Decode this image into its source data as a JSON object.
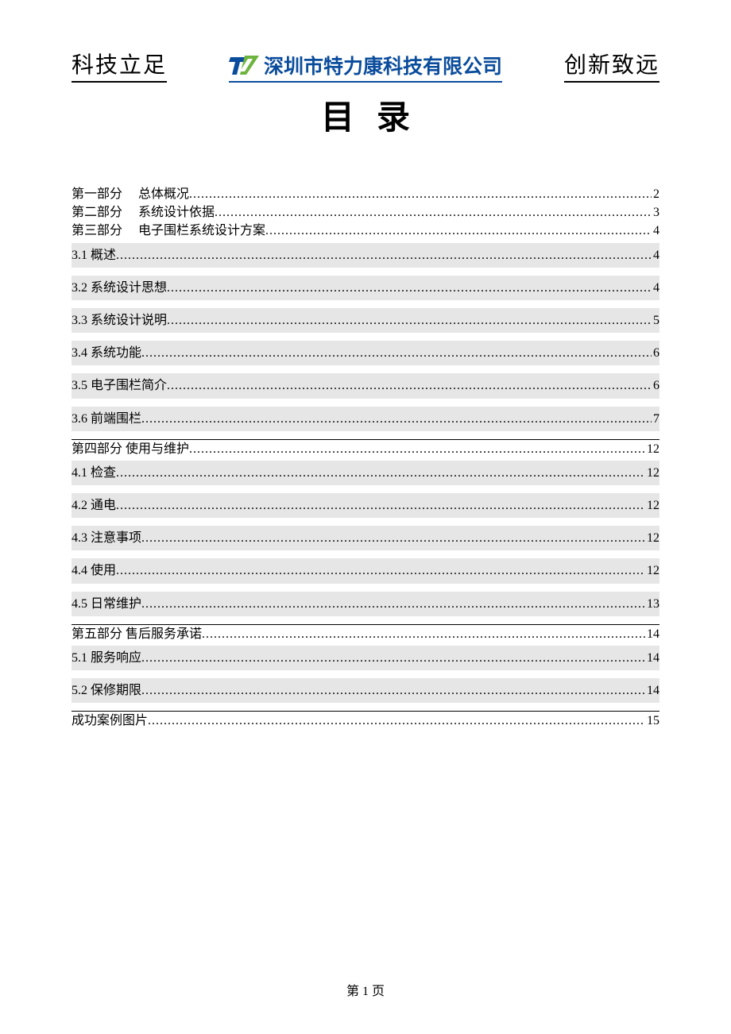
{
  "header": {
    "left": "科技立足",
    "company": "深圳市特力康科技有限公司",
    "right": "创新致远"
  },
  "title": "目录",
  "toc": [
    {
      "label": "第一部分　 总体概况",
      "page": "2",
      "level": 1,
      "shaded": false,
      "sep": false
    },
    {
      "label": "第二部分　 系统设计依据",
      "page": "3",
      "level": 1,
      "shaded": false,
      "sep": false
    },
    {
      "label": "第三部分　 电子围栏系统设计方案",
      "page": "4",
      "level": 1,
      "shaded": false,
      "sep": false
    },
    {
      "label": "3.1  概述",
      "page": "4",
      "level": 2,
      "shaded": true,
      "first": true,
      "sep": false
    },
    {
      "label": "3.2  系统设计思想",
      "page": "4",
      "level": 2,
      "shaded": true,
      "sep": false
    },
    {
      "label": "3.3  系统设计说明",
      "page": "5",
      "level": 2,
      "shaded": true,
      "sep": false
    },
    {
      "label": "3.4  系统功能",
      "page": "6",
      "level": 2,
      "shaded": true,
      "sep": false
    },
    {
      "label": "3.5  电子围栏简介",
      "page": "6",
      "level": 2,
      "shaded": true,
      "sep": false
    },
    {
      "label": "3.6  前端围栏",
      "page": "7",
      "level": 2,
      "shaded": true,
      "sep": true
    },
    {
      "label": "第四部分  使用与维护",
      "page": "12",
      "level": 1,
      "shaded": false,
      "sep": false
    },
    {
      "label": "4.1 检查",
      "page": "12",
      "level": 2,
      "shaded": true,
      "first": true,
      "sep": false
    },
    {
      "label": "4.2  通电",
      "page": "12",
      "level": 2,
      "shaded": true,
      "sep": false
    },
    {
      "label": "4.3 注意事项",
      "page": "12",
      "level": 2,
      "shaded": true,
      "sep": false
    },
    {
      "label": "4.4  使用",
      "page": "12",
      "level": 2,
      "shaded": true,
      "sep": false
    },
    {
      "label": "4.5  日常维护",
      "page": "13",
      "level": 2,
      "shaded": true,
      "sep": true
    },
    {
      "label": "第五部分  售后服务承诺",
      "page": "14",
      "level": 1,
      "shaded": false,
      "sep": false
    },
    {
      "label": "5.1  服务响应",
      "page": "14",
      "level": 2,
      "shaded": true,
      "first": true,
      "sep": false
    },
    {
      "label": "5.2  保修期限",
      "page": "14",
      "level": 2,
      "shaded": true,
      "sep": true
    },
    {
      "label": "成功案例图片",
      "page": "15",
      "level": 1,
      "shaded": false,
      "sep": false
    }
  ],
  "footer": "第 1 页",
  "colors": {
    "brand_blue": "#0a4c9c",
    "logo_green": "#6db43f",
    "shade": "#e6e6e6"
  }
}
